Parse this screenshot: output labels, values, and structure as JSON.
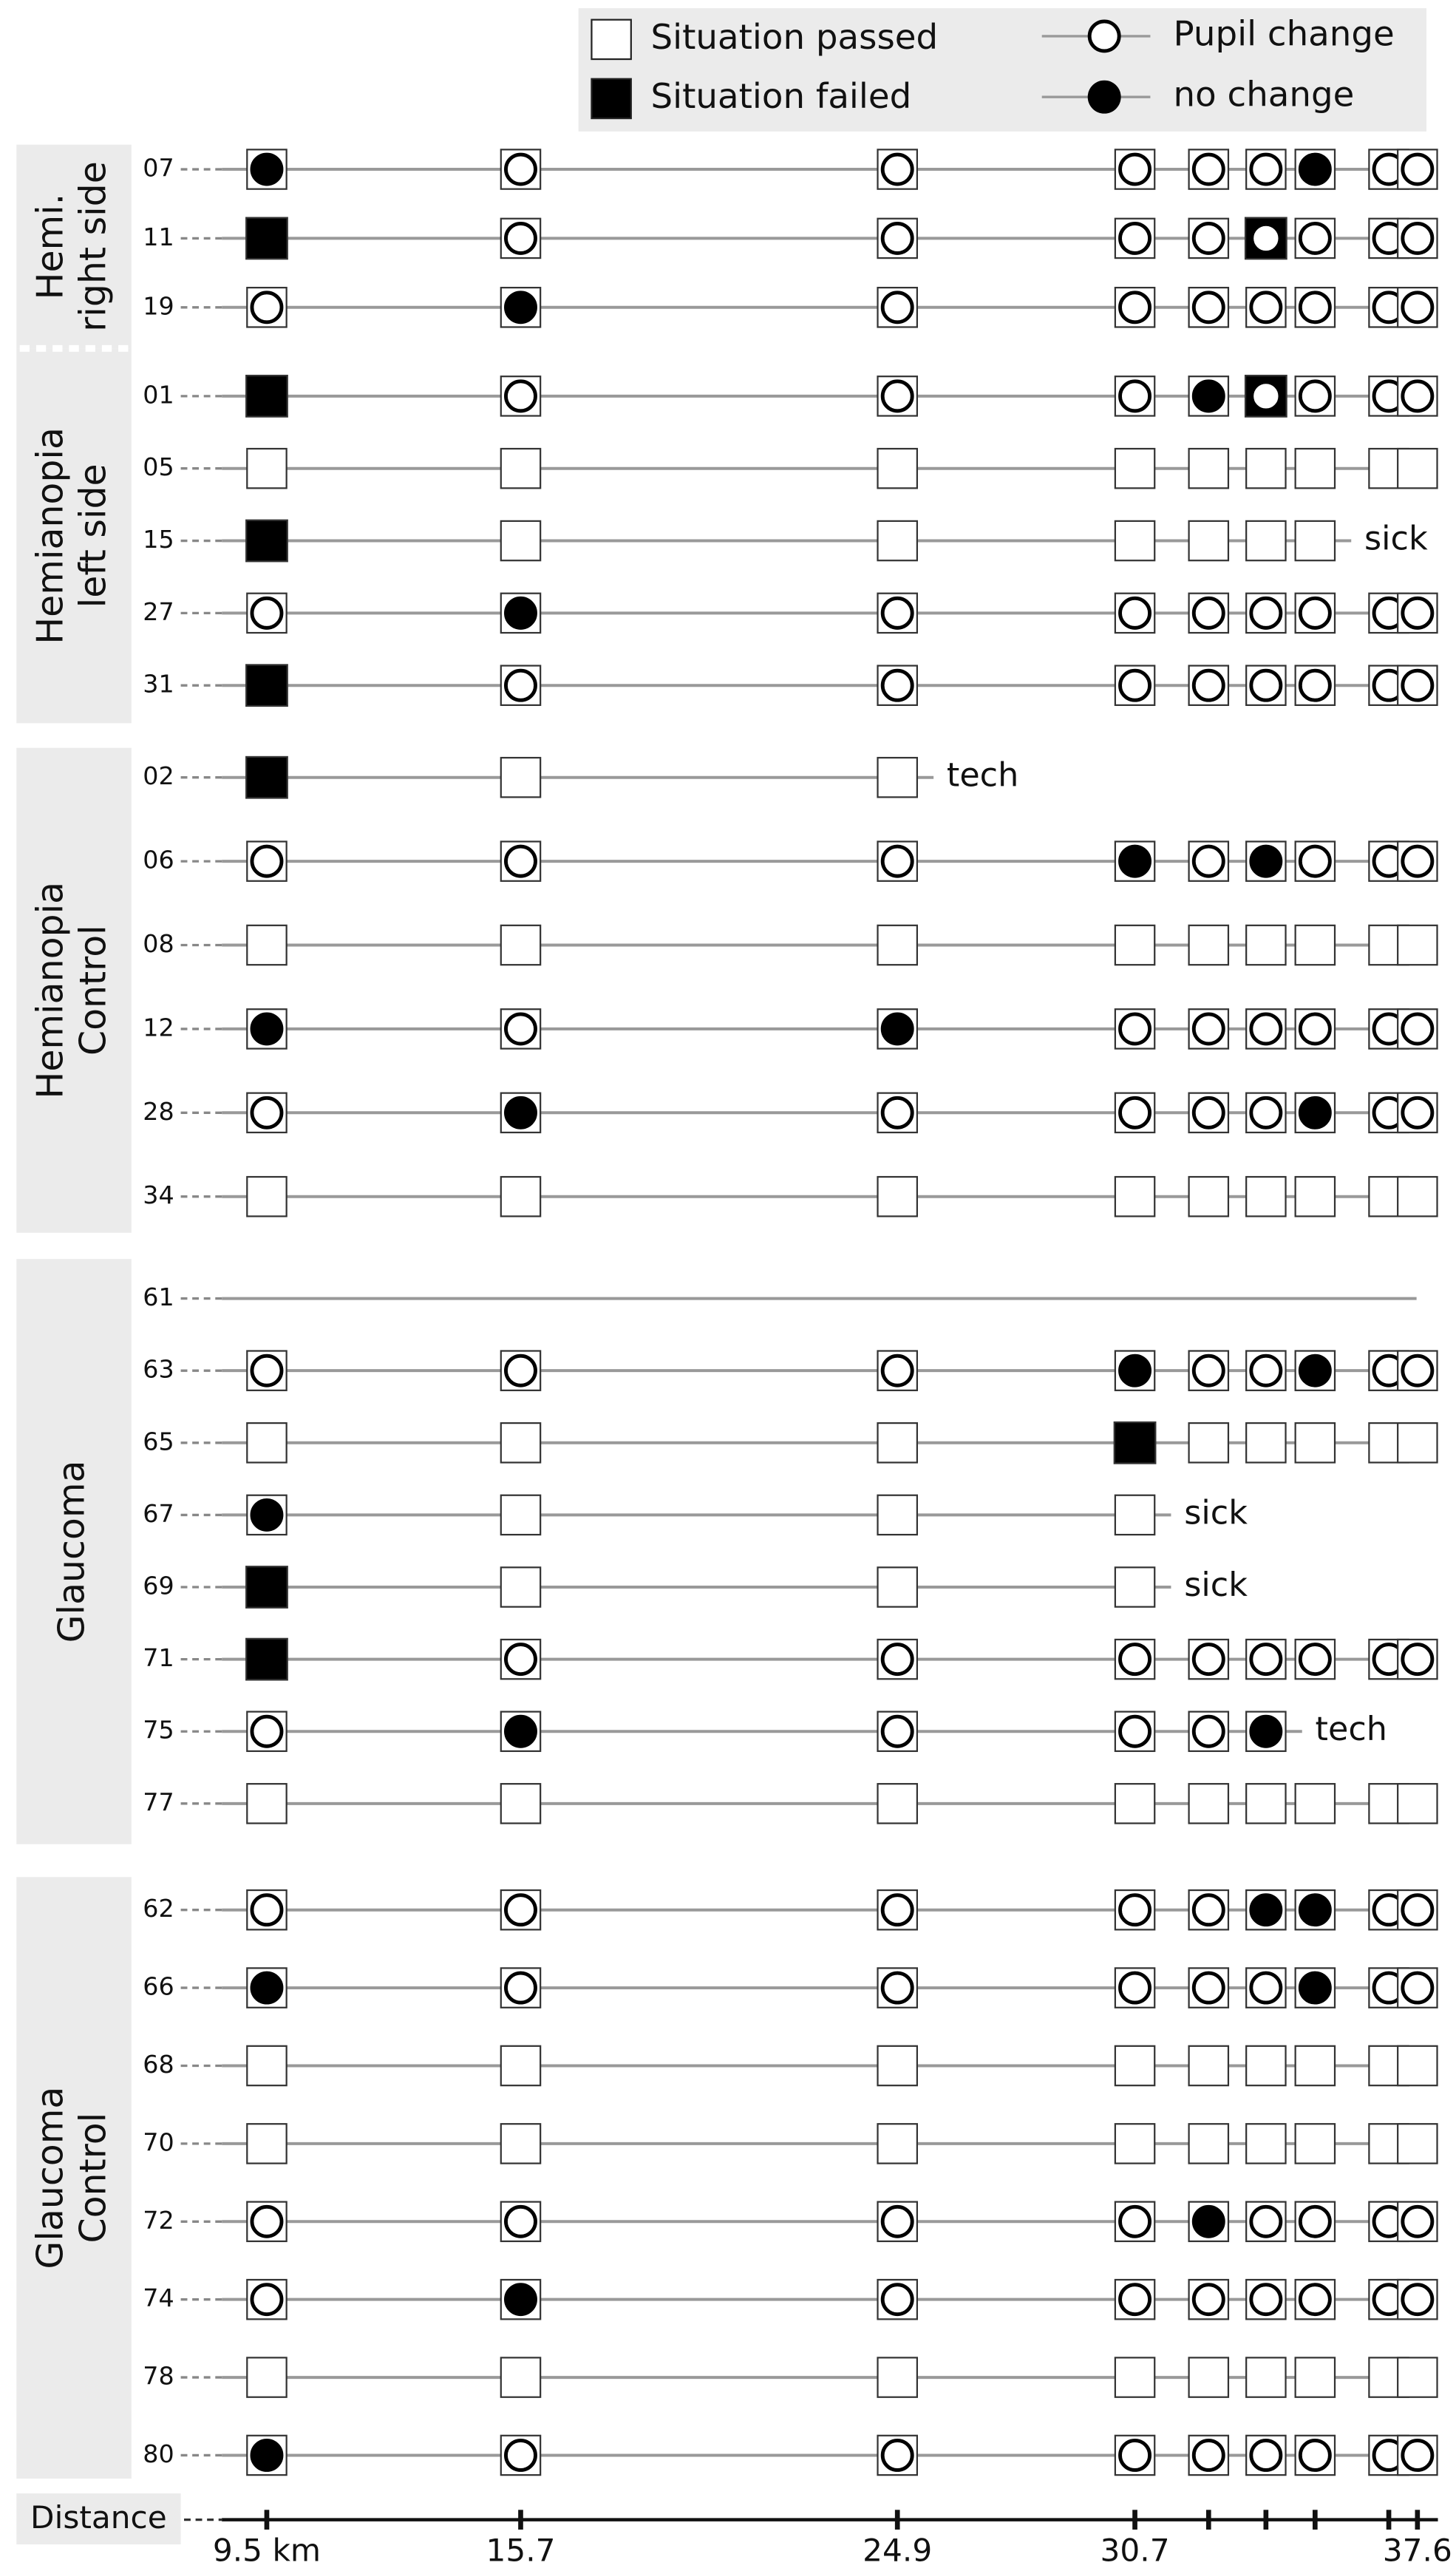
{
  "chart_data": {
    "type": "matrix",
    "legend": [
      {
        "label": "Situation passed",
        "symbol": "square-open"
      },
      {
        "label": "Situation failed",
        "symbol": "square-filled"
      },
      {
        "label": "Pupil change",
        "symbol": "circle-open"
      },
      {
        "label": "no change",
        "symbol": "circle-filled"
      }
    ],
    "x_label": "Distance",
    "columns": [
      9.5,
      15.7,
      24.9,
      30.7,
      32.5,
      33.9,
      35.1,
      36.9,
      37.6
    ],
    "xlim": [
      7.6,
      38.1
    ],
    "xticks": [
      {
        "value": 9.5,
        "label": "9.5 km"
      },
      15.7,
      24.9,
      30.7,
      37.6
    ],
    "groups": [
      {
        "label": [
          "Hemi.",
          "right side"
        ],
        "rows": [
          {
            "id": "07",
            "cells": [
              "pn",
              "pc",
              "pc",
              "pc",
              "pc",
              "pc",
              "pn",
              "pc",
              "pc"
            ]
          },
          {
            "id": "11",
            "cells": [
              "f",
              "pc",
              "pc",
              "pc",
              "pc",
              "fc",
              "pc",
              "pc",
              "pc"
            ]
          },
          {
            "id": "19",
            "cells": [
              "pc",
              "pn",
              "pc",
              "pc",
              "pc",
              "pc",
              "pc",
              "pc",
              "pc"
            ]
          }
        ]
      },
      {
        "label": [
          "Hemianopia",
          "left side"
        ],
        "rows": [
          {
            "id": "01",
            "cells": [
              "f",
              "pc",
              "pc",
              "pc",
              "pn",
              "fc",
              "pc",
              "pc",
              "pc"
            ]
          },
          {
            "id": "05",
            "cells": [
              "p",
              "p",
              "p",
              "p",
              "p",
              "p",
              "p",
              "p",
              "p"
            ]
          },
          {
            "id": "15",
            "cells": [
              "f",
              "p",
              "p",
              "p",
              "p",
              "p",
              "p",
              null,
              null
            ],
            "note": "sick"
          },
          {
            "id": "27",
            "cells": [
              "pc",
              "pn",
              "pc",
              "pc",
              "pc",
              "pc",
              "pc",
              "pc",
              "pc"
            ]
          },
          {
            "id": "31",
            "cells": [
              "f",
              "pc",
              "pc",
              "pc",
              "pc",
              "pc",
              "pc",
              "pc",
              "pc"
            ]
          }
        ]
      },
      {
        "label": [
          "Hemianopia",
          "Control"
        ],
        "rows": [
          {
            "id": "02",
            "cells": [
              "f",
              "p",
              "p",
              null,
              null,
              null,
              null,
              null,
              null
            ],
            "note": "tech"
          },
          {
            "id": "06",
            "cells": [
              "pc",
              "pc",
              "pc",
              "pn",
              "pc",
              "pn",
              "pc",
              "pc",
              "pc"
            ]
          },
          {
            "id": "08",
            "cells": [
              "p",
              "p",
              "p",
              "p",
              "p",
              "p",
              "p",
              "p",
              "p"
            ]
          },
          {
            "id": "12",
            "cells": [
              "pn",
              "pc",
              "pn",
              "pc",
              "pc",
              "pc",
              "pc",
              "pc",
              "pc"
            ]
          },
          {
            "id": "28",
            "cells": [
              "pc",
              "pn",
              "pc",
              "pc",
              "pc",
              "pc",
              "pn",
              "pc",
              "pc"
            ]
          },
          {
            "id": "34",
            "cells": [
              "p",
              "p",
              "p",
              "p",
              "p",
              "p",
              "p",
              "p",
              "p"
            ]
          }
        ]
      },
      {
        "label": [
          "Glaucoma"
        ],
        "rows": [
          {
            "id": "61",
            "cells": [
              null,
              null,
              null,
              null,
              null,
              null,
              null,
              null,
              null
            ]
          },
          {
            "id": "63",
            "cells": [
              "pc",
              "pc",
              "pc",
              "pn",
              "pc",
              "pc",
              "pn",
              "pc",
              "pc"
            ]
          },
          {
            "id": "65",
            "cells": [
              "p",
              "p",
              "p",
              "f",
              "p",
              "p",
              "p",
              "p",
              "p"
            ]
          },
          {
            "id": "67",
            "cells": [
              "pn",
              "p",
              "p",
              "p",
              null,
              null,
              null,
              null,
              null
            ],
            "note": "sick"
          },
          {
            "id": "69",
            "cells": [
              "f",
              "p",
              "p",
              "p",
              null,
              null,
              null,
              null,
              null
            ],
            "note": "sick"
          },
          {
            "id": "71",
            "cells": [
              "f",
              "pc",
              "pc",
              "pc",
              "pc",
              "pc",
              "pc",
              "pc",
              "pc"
            ]
          },
          {
            "id": "75",
            "cells": [
              "pc",
              "pn",
              "pc",
              "pc",
              "pc",
              "pn",
              null,
              null,
              null
            ],
            "note": "tech"
          },
          {
            "id": "77",
            "cells": [
              "p",
              "p",
              "p",
              "p",
              "p",
              "p",
              "p",
              "p",
              "p"
            ]
          }
        ]
      },
      {
        "label": [
          "Glaucoma",
          "Control"
        ],
        "rows": [
          {
            "id": "62",
            "cells": [
              "pc",
              "pc",
              "pc",
              "pc",
              "pc",
              "pn",
              "pn",
              "pc",
              "pc"
            ]
          },
          {
            "id": "66",
            "cells": [
              "pn",
              "pc",
              "pc",
              "pc",
              "pc",
              "pc",
              "pn",
              "pc",
              "pc"
            ]
          },
          {
            "id": "68",
            "cells": [
              "p",
              "p",
              "p",
              "p",
              "p",
              "p",
              "p",
              "p",
              "p"
            ]
          },
          {
            "id": "70",
            "cells": [
              "p",
              "p",
              "p",
              "p",
              "p",
              "p",
              "p",
              "p",
              "p"
            ]
          },
          {
            "id": "72",
            "cells": [
              "pc",
              "pc",
              "pc",
              "pc",
              "pn",
              "pc",
              "pc",
              "pc",
              "pc"
            ]
          },
          {
            "id": "74",
            "cells": [
              "pc",
              "pn",
              "pc",
              "pc",
              "pc",
              "pc",
              "pc",
              "pc",
              "pc"
            ]
          },
          {
            "id": "78",
            "cells": [
              "p",
              "p",
              "p",
              "p",
              "p",
              "p",
              "p",
              "p",
              "p"
            ]
          },
          {
            "id": "80",
            "cells": [
              "pn",
              "pc",
              "pc",
              "pc",
              "pc",
              "pc",
              "pc",
              "pc",
              "pc"
            ]
          }
        ]
      }
    ]
  }
}
